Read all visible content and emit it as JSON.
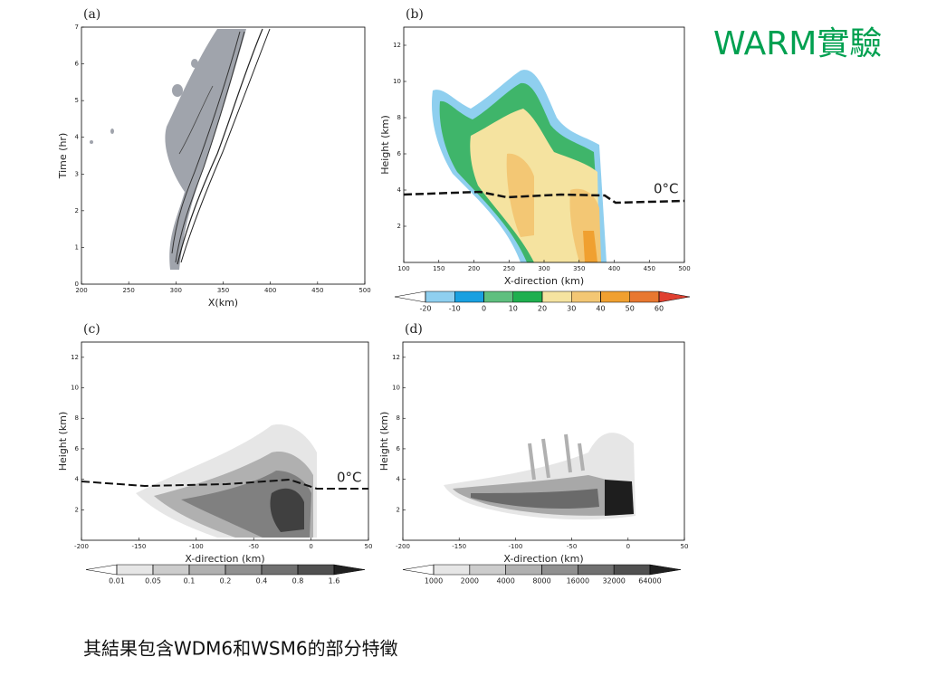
{
  "slide": {
    "title": "WARM實驗",
    "caption": "其結果包含WDM6和WSM6的部分特徵"
  },
  "chart_data": [
    {
      "type": "contour",
      "label": "(a)",
      "xlabel": "X(km)",
      "ylabel": "Time (hr)",
      "xlim": [
        200,
        500
      ],
      "xticks": [
        200,
        250,
        300,
        350,
        400,
        450,
        500
      ],
      "ylim": [
        0,
        7
      ],
      "yticks": [
        0,
        1,
        2,
        3,
        4,
        5,
        6,
        7
      ]
    },
    {
      "type": "contour",
      "label": "(b)",
      "xlabel": "X-direction (km)",
      "ylabel": "Height (km)",
      "annotation": "0°C",
      "xlim": [
        100,
        500
      ],
      "xticks": [
        100,
        150,
        200,
        250,
        300,
        350,
        400,
        450,
        500
      ],
      "ylim": [
        0,
        13
      ],
      "yticks": [
        2,
        4,
        6,
        8,
        10,
        12
      ],
      "colorbar": {
        "levels": [
          -20,
          -10,
          0,
          10,
          20,
          30,
          40,
          50,
          60
        ],
        "colors": [
          "#ffffff",
          "#8fcfef",
          "#1aa0e0",
          "#5fbf7f",
          "#1faf4f",
          "#f5e3a0",
          "#f3c774",
          "#f0a030",
          "#e87830",
          "#e04030"
        ]
      }
    },
    {
      "type": "contour",
      "label": "(c)",
      "xlabel": "X-direction (km)",
      "ylabel": "Height (km)",
      "annotation": "0°C",
      "xlim": [
        -200,
        50
      ],
      "xticks": [
        -200,
        -150,
        -100,
        -50,
        0,
        50
      ],
      "ylim": [
        0,
        13
      ],
      "yticks": [
        2,
        4,
        6,
        8,
        10,
        12
      ],
      "colorbar": {
        "levels": [
          0.01,
          0.05,
          0.1,
          0.2,
          0.4,
          0.8,
          1.6
        ],
        "colors": [
          "#ffffff",
          "#e6e6e6",
          "#cccccc",
          "#b0b0b0",
          "#909090",
          "#707070",
          "#505050",
          "#202020"
        ]
      }
    },
    {
      "type": "contour",
      "label": "(d)",
      "xlabel": "X-direction (km)",
      "ylabel": "Height (km)",
      "xlim": [
        -200,
        50
      ],
      "xticks": [
        -200,
        -150,
        -100,
        -50,
        0,
        50
      ],
      "ylim": [
        0,
        13
      ],
      "yticks": [
        2,
        4,
        6,
        8,
        10,
        12
      ],
      "colorbar": {
        "levels": [
          1000,
          2000,
          4000,
          8000,
          16000,
          32000,
          64000
        ],
        "colors": [
          "#ffffff",
          "#e6e6e6",
          "#cccccc",
          "#b0b0b0",
          "#909090",
          "#707070",
          "#505050",
          "#202020"
        ]
      }
    }
  ]
}
